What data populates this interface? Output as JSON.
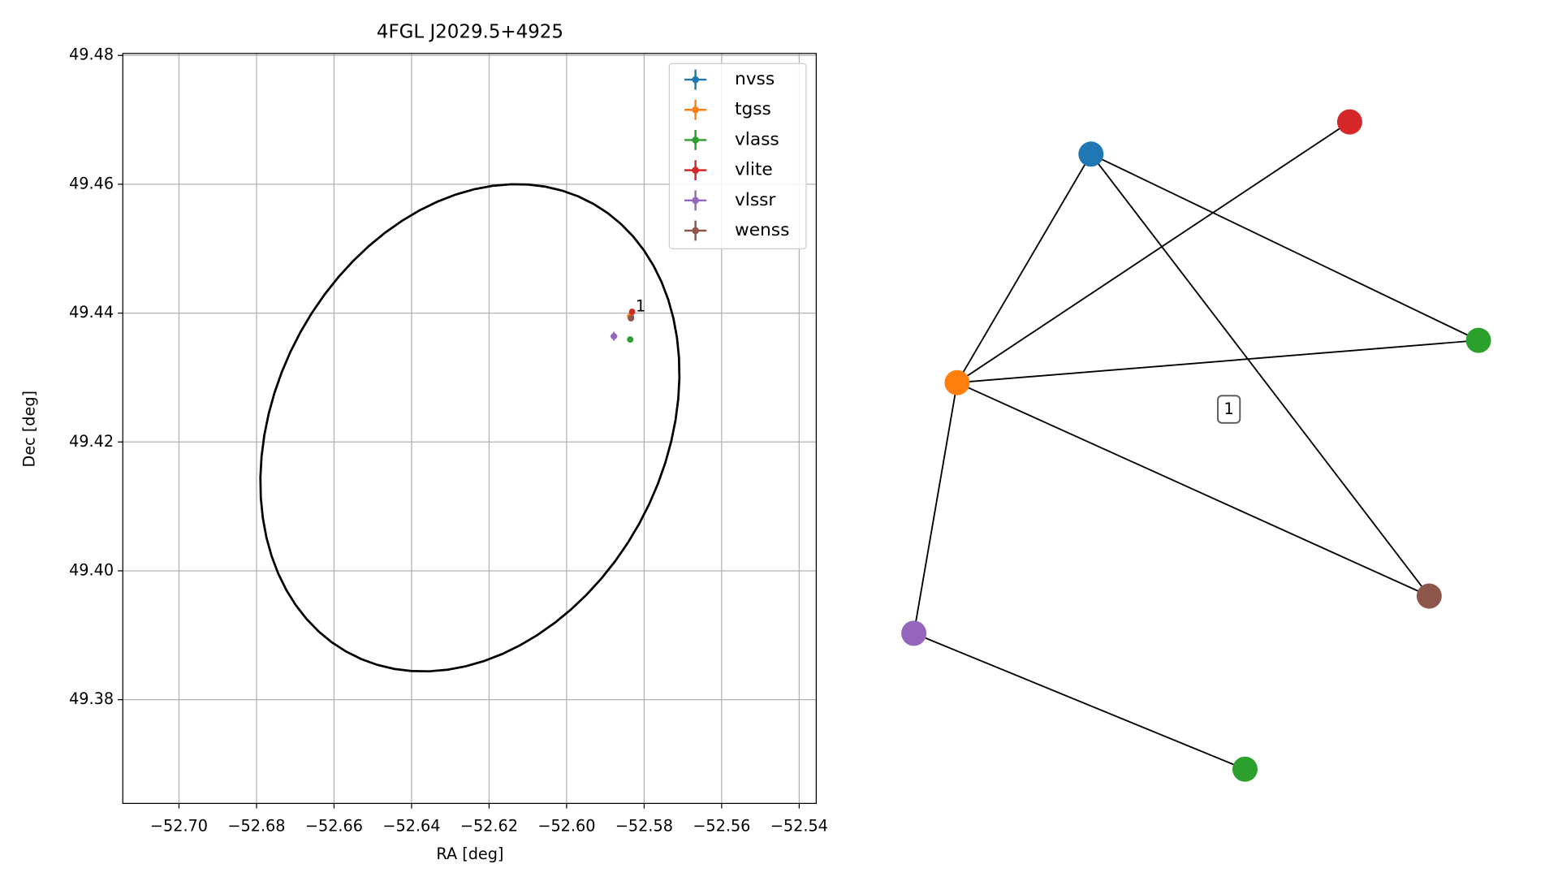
{
  "chart_data": [
    {
      "type": "scatter",
      "title": "4FGL J2029.5+4925",
      "xlabel": "RA [deg]",
      "ylabel": "Dec [deg]",
      "xlim": [
        -52.7145,
        -52.5356
      ],
      "ylim": [
        49.3639,
        49.4803
      ],
      "xticks": [
        {
          "value": -52.7,
          "label": "−52.70"
        },
        {
          "value": -52.68,
          "label": "−52.68"
        },
        {
          "value": -52.66,
          "label": "−52.66"
        },
        {
          "value": -52.64,
          "label": "−52.64"
        },
        {
          "value": -52.62,
          "label": "−52.62"
        },
        {
          "value": -52.6,
          "label": "−52.60"
        },
        {
          "value": -52.58,
          "label": "−52.58"
        },
        {
          "value": -52.56,
          "label": "−52.56"
        },
        {
          "value": -52.54,
          "label": "−52.54"
        }
      ],
      "yticks": [
        49.38,
        {
          "value": 49.4,
          "label": "49.40"
        },
        49.42,
        49.44,
        49.46,
        49.48
      ],
      "grid": true,
      "legend": "upper right",
      "series": [
        {
          "name": "nvss",
          "color": "#1f77b4",
          "x": [
            -52.5834
          ],
          "values": [
            49.4394
          ],
          "xerr": [
            0.0004
          ],
          "yerr": [
            0.0003
          ]
        },
        {
          "name": "tgss",
          "color": "#ff7f0e",
          "x": [
            -52.5836
          ],
          "values": [
            49.4395
          ],
          "xerr": [
            0.0006
          ],
          "yerr": [
            0.0004
          ]
        },
        {
          "name": "vlass",
          "color": "#2ca02c",
          "x": [
            -52.5836
          ],
          "values": [
            49.4359
          ],
          "xerr": [
            0.0002
          ],
          "yerr": [
            0.0002
          ]
        },
        {
          "name": "vlite",
          "color": "#d62728",
          "x": [
            -52.5831
          ],
          "values": [
            49.4402
          ],
          "xerr": [
            0.0004
          ],
          "yerr": [
            0.0003
          ]
        },
        {
          "name": "vlssr",
          "color": "#9467bd",
          "x": [
            -52.5878
          ],
          "values": [
            49.4364
          ],
          "xerr": [
            0.0009
          ],
          "yerr": [
            0.0007
          ]
        },
        {
          "name": "wenss",
          "color": "#8c564b",
          "x": [
            -52.5834
          ],
          "values": [
            49.4392
          ],
          "xerr": [
            0.0005
          ],
          "yerr": [
            0.0004
          ]
        }
      ],
      "annotations": [
        {
          "text": "1",
          "x": -52.5822,
          "y": 49.4405
        }
      ],
      "ellipse": {
        "ra": -52.62495,
        "dec": 49.4222,
        "a": [
          0.05375,
          0.0058
        ],
        "b": [
          0.00445,
          0.03755
        ],
        "color": "#000000"
      }
    },
    {
      "type": "network",
      "label": "1",
      "node_colors": [
        "#1f77b4",
        "#ff7f0e",
        "#2ca02c",
        "#d62728",
        "#9467bd",
        "#8c564b",
        "#2ca02c"
      ],
      "edges": [
        [
          0,
          1
        ],
        [
          0,
          2
        ],
        [
          0,
          5
        ],
        [
          1,
          3
        ],
        [
          1,
          2
        ],
        [
          1,
          5
        ],
        [
          1,
          4
        ],
        [
          4,
          6
        ]
      ]
    }
  ]
}
